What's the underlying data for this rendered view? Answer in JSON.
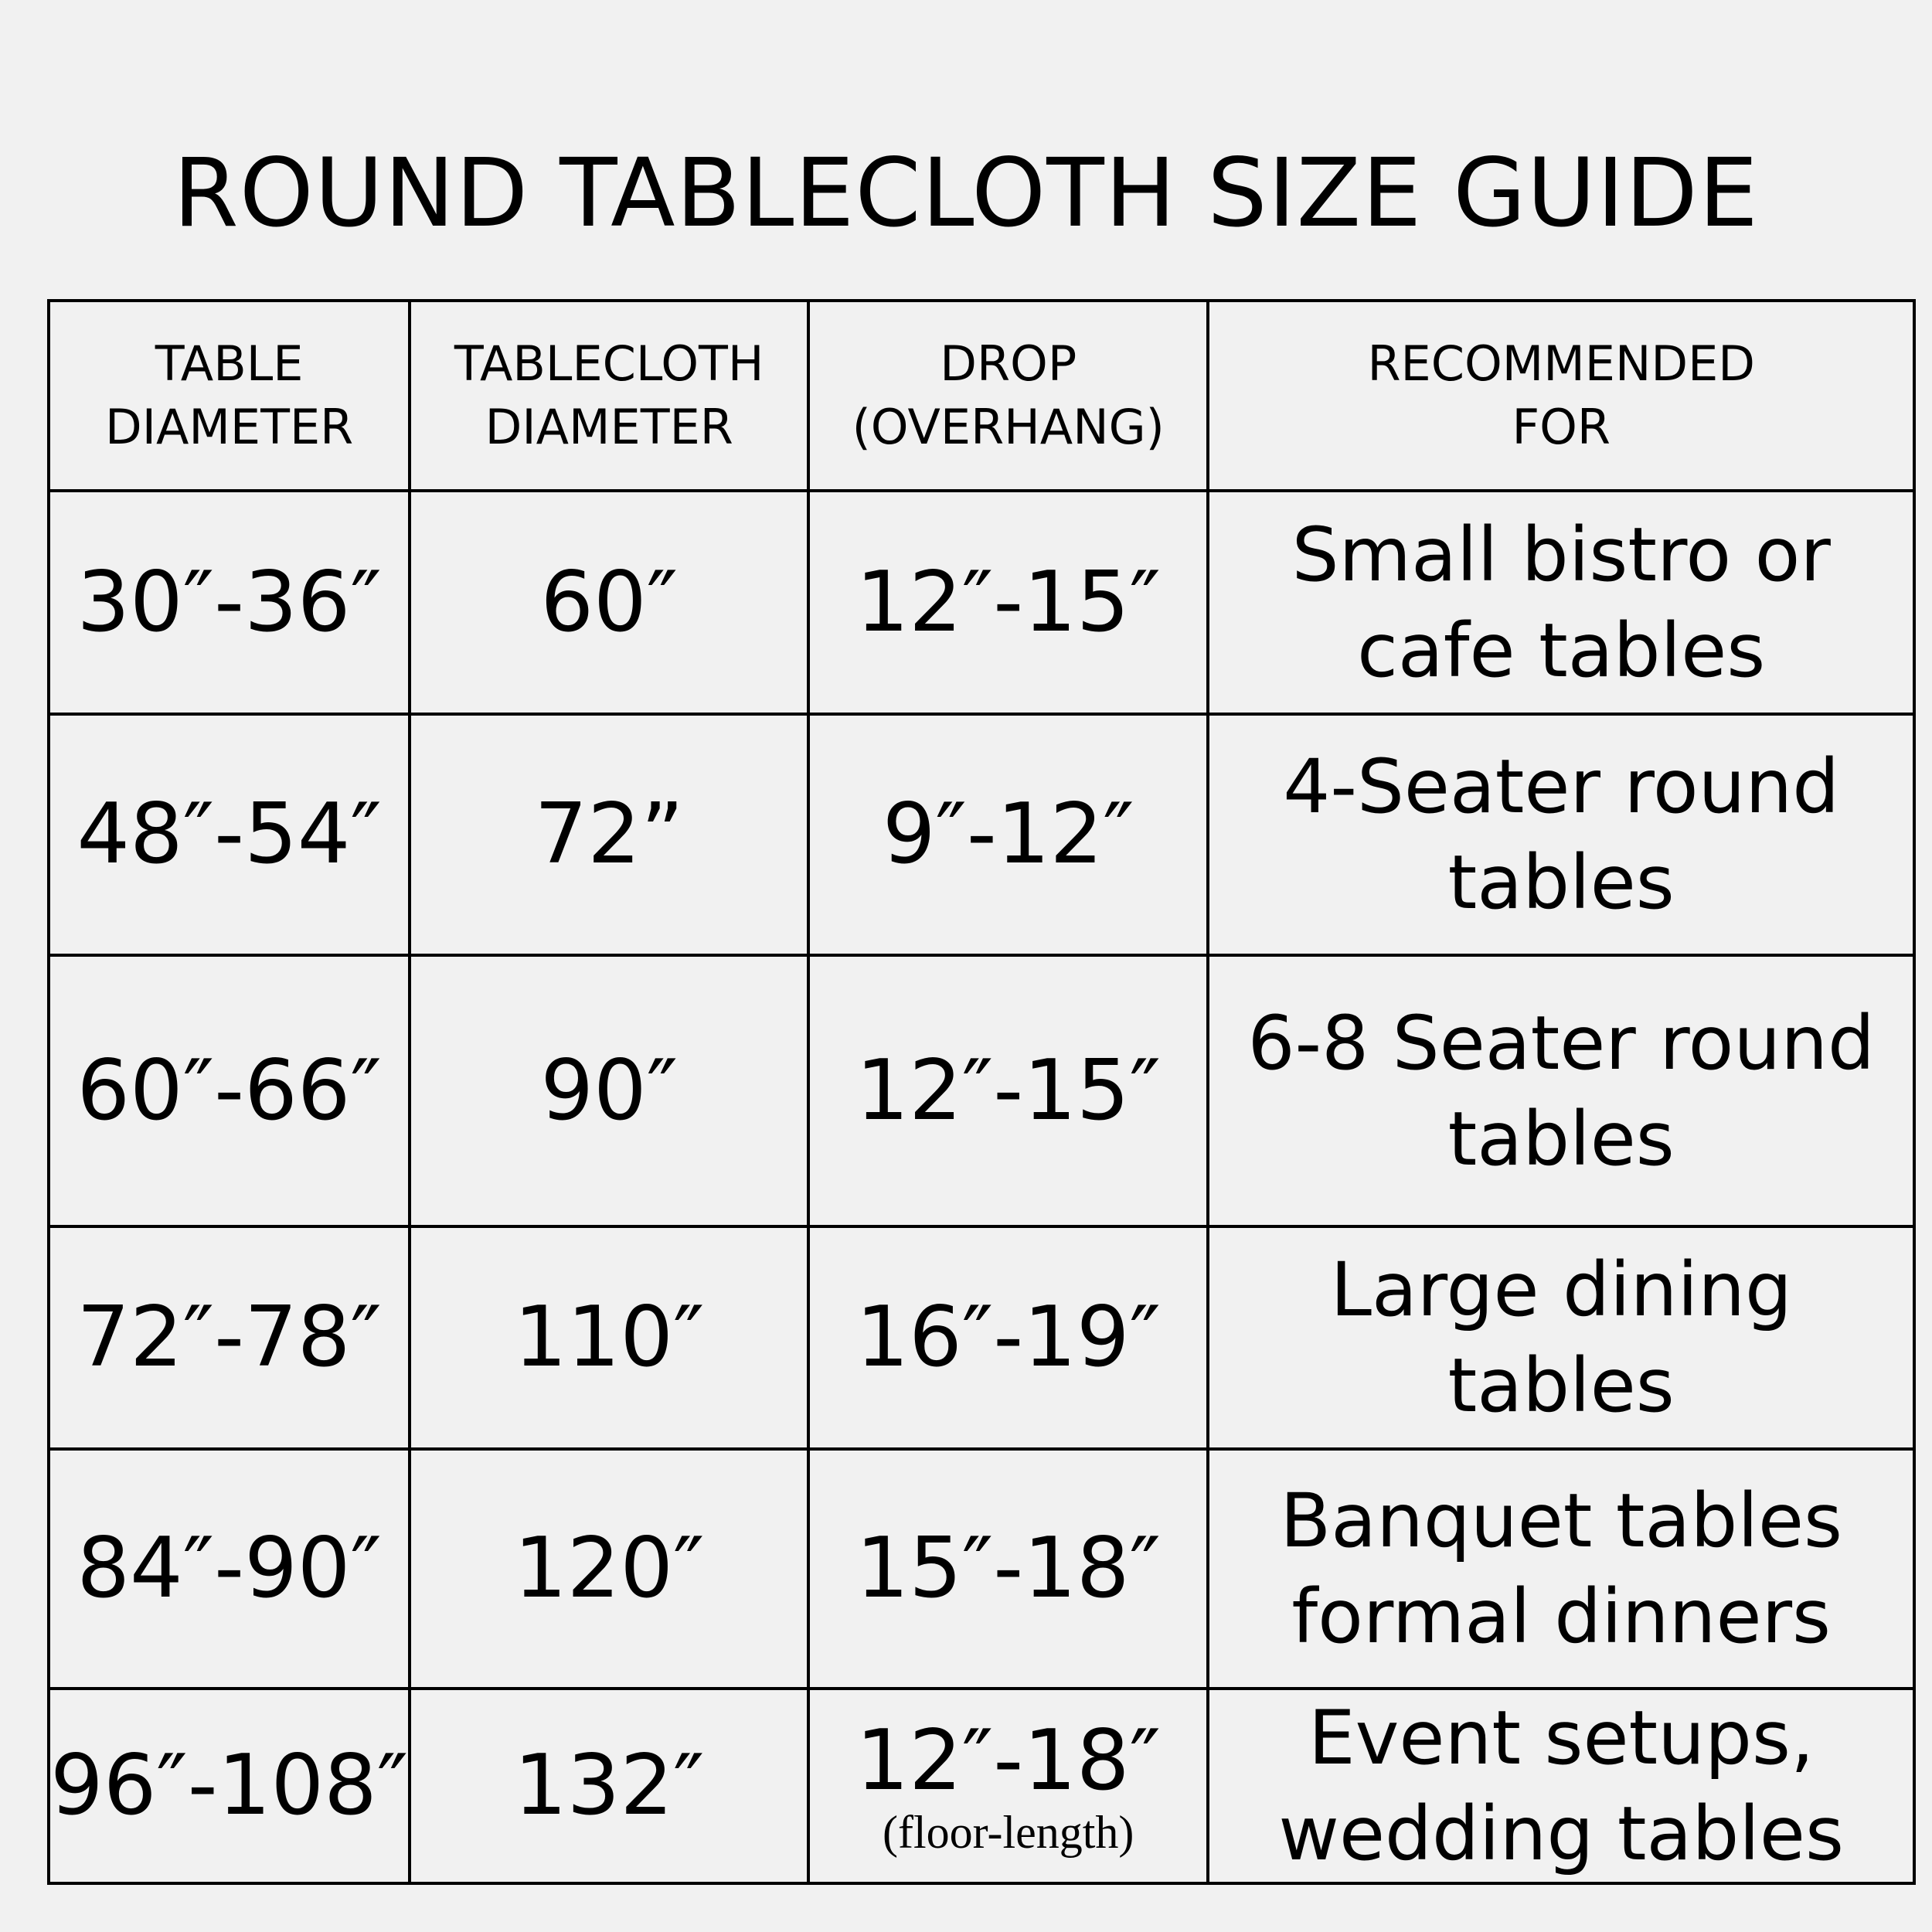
{
  "title": "ROUND TABLECLOTH SIZE GUIDE",
  "headers": [
    "TABLE DIAMETER",
    "TABLECLOTH DIAMETER",
    "DROP (OVERHANG)",
    "RECOMMENDED FOR"
  ],
  "header_lines": [
    [
      "TABLE",
      "DIAMETER"
    ],
    [
      "TABLECLOTH",
      "DIAMETER"
    ],
    [
      "DROP",
      "(OVERHANG)"
    ],
    [
      "RECOMMENDED",
      "FOR"
    ]
  ],
  "rows": [
    {
      "table": "30″-36″",
      "cloth": "60″",
      "drop": "12″-15″",
      "rec": [
        "Small bistro or",
        "cafe tables"
      ]
    },
    {
      "table": "48″-54″",
      "cloth": "72”",
      "drop": "9″-12″",
      "rec": [
        "4-Seater round",
        "tables"
      ]
    },
    {
      "table": "60″-66″",
      "cloth": "90″",
      "drop": "12″-15″",
      "rec": [
        "6-8 Seater round",
        "tables"
      ]
    },
    {
      "table": "72″-78″",
      "cloth": "110″",
      "drop": "16″-19″",
      "rec": [
        "Large dining",
        "tables"
      ]
    },
    {
      "table": "84″-90″",
      "cloth": "120″",
      "drop": "15″-18″",
      "rec": [
        "Banquet tables",
        "formal dinners"
      ]
    },
    {
      "table": "96″-108″",
      "cloth": "132″",
      "drop": "12″-18″",
      "drop_note": "(floor-length)",
      "rec": [
        "Event setups,",
        "wedding tables"
      ]
    }
  ]
}
